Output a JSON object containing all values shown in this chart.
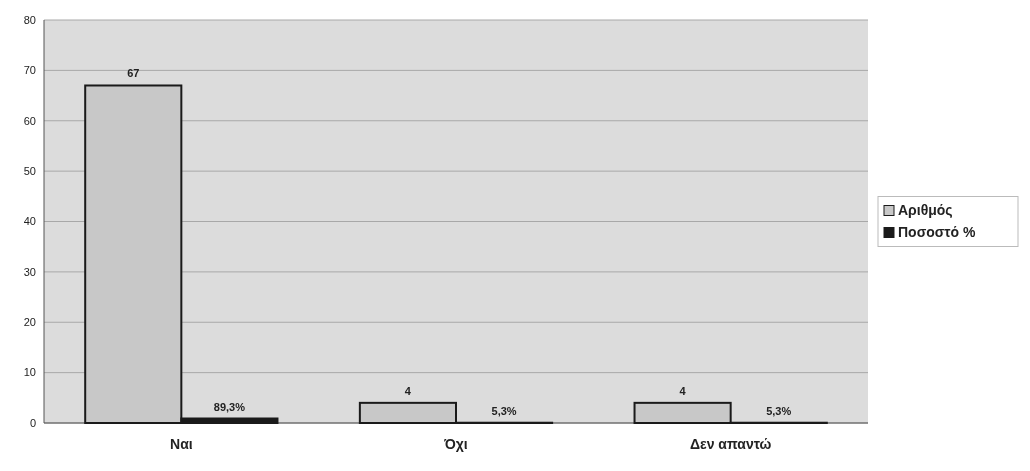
{
  "chart_data": {
    "type": "bar",
    "categories": [
      "Ναι",
      "Όχι",
      "Δεν απαντώ"
    ],
    "series": [
      {
        "name": "Αριθμός",
        "color": "#c8c8c8",
        "values": [
          67,
          4,
          4
        ],
        "value_labels": [
          "67",
          "4",
          "4"
        ]
      },
      {
        "name": "Ποσοστό %",
        "color": "#1a1a1a",
        "values": [
          0.893,
          0.053,
          0.053
        ],
        "value_labels": [
          "89,3%",
          "5,3%",
          "5,3%"
        ]
      }
    ],
    "ylim": [
      0,
      80
    ],
    "yticks": [
      0,
      10,
      20,
      30,
      40,
      50,
      60,
      70,
      80
    ],
    "grid": "y",
    "legend": "right"
  }
}
